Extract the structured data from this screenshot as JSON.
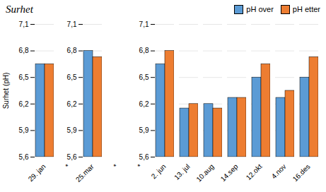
{
  "chart_data": {
    "type": "bar",
    "title": "Surhet",
    "ylabel": "Surhet (pH)",
    "categories": [
      "29. jan",
      "*",
      "25.mar",
      "*",
      "*",
      "2. jun",
      "13. jul",
      "10.aug",
      "14.sep",
      "12.okt",
      "4.nov",
      "16.des"
    ],
    "series": [
      {
        "name": "pH over",
        "color": "#5B9BD5",
        "values": [
          6.65,
          null,
          6.8,
          null,
          null,
          6.65,
          6.15,
          6.2,
          6.27,
          6.5,
          6.27,
          6.5
        ]
      },
      {
        "name": "pH etter",
        "color": "#ED7D31",
        "values": [
          6.65,
          null,
          6.73,
          null,
          null,
          6.8,
          6.2,
          6.15,
          6.27,
          6.65,
          6.35,
          6.73
        ]
      }
    ],
    "ylim": [
      5.6,
      7.1
    ],
    "yticks": [
      {
        "value": 5.6,
        "label": "5,6"
      },
      {
        "value": 5.9,
        "label": "5,9"
      },
      {
        "value": 6.2,
        "label": "6,2"
      },
      {
        "value": 6.5,
        "label": "6,5"
      },
      {
        "value": 6.8,
        "label": "6,8"
      },
      {
        "value": 7.1,
        "label": "7,1"
      }
    ],
    "grid": true,
    "legend": "upper right"
  }
}
